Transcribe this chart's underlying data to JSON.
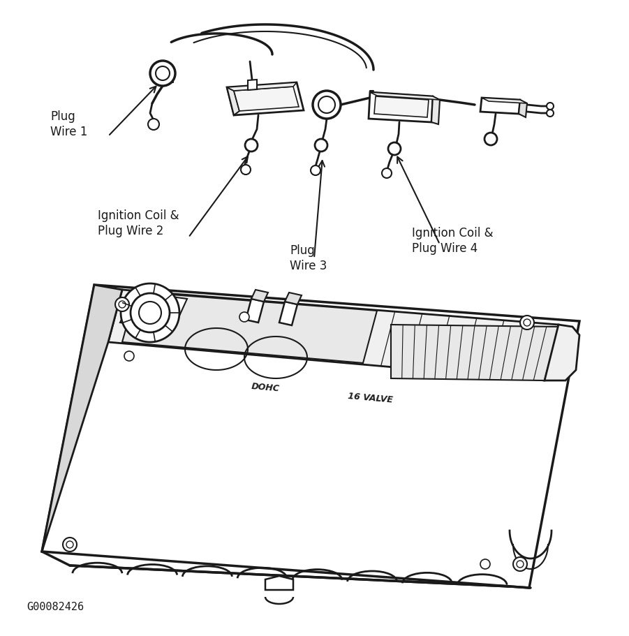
{
  "bg_color": "#ffffff",
  "line_color": "#1a1a1a",
  "labels": {
    "plug_wire_1": "Plug\nWire 1",
    "ignition_coil_2": "Ignition Coil &\nPlug Wire 2",
    "plug_wire_3": "Plug\nWire 3",
    "ignition_coil_4": "Ignition Coil &\nPlug Wire 4"
  },
  "diagram_code": "G00082426",
  "figsize": [
    9.01,
    9.11
  ],
  "dpi": 100,
  "label_fontsize": 12,
  "code_fontsize": 11
}
